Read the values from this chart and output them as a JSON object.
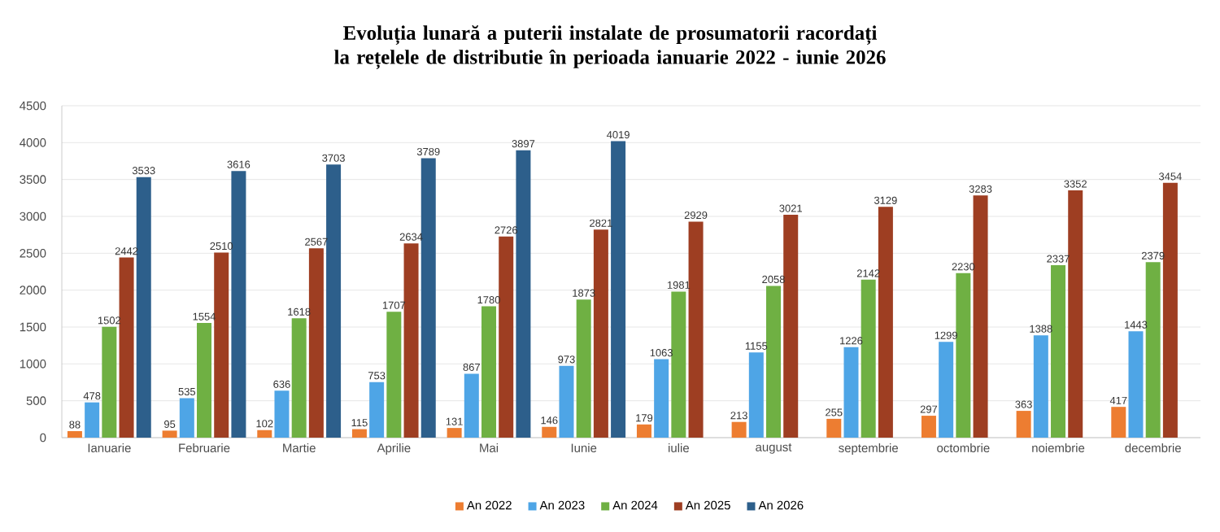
{
  "chart_data": {
    "type": "bar",
    "title": "Evoluția lunară a puterii instalate de prosumatorii racordați la rețelele de distributie în perioada ianuarie 2022 - iunie 2026",
    "categories": [
      "Ianuarie",
      "Februarie",
      "Martie",
      "Aprilie",
      "Mai",
      "Iunie",
      "iulie",
      "august",
      "septembrie",
      "octombrie",
      "noiembrie",
      "decembrie"
    ],
    "series": [
      {
        "name": "An 2022",
        "color": "#ed7d31",
        "values": [
          88,
          95,
          102,
          115,
          131,
          146,
          179,
          213,
          255,
          297,
          363,
          417
        ]
      },
      {
        "name": "An 2023",
        "color": "#4ea5e6",
        "values": [
          478,
          535,
          636,
          753,
          867,
          973,
          1063,
          1155,
          1226,
          1299,
          1388,
          1443
        ]
      },
      {
        "name": "An 2024",
        "color": "#6fb043",
        "values": [
          1502,
          1554,
          1618,
          1707,
          1780,
          1873,
          1981,
          2058,
          2142,
          2230,
          2337,
          2379
        ]
      },
      {
        "name": "An 2025",
        "color": "#9e3e22",
        "values": [
          2442,
          2510,
          2567,
          2634,
          2726,
          2821,
          2929,
          3021,
          3129,
          3283,
          3352,
          3454
        ]
      },
      {
        "name": "An 2026",
        "color": "#2d5f8b",
        "values": [
          3533,
          3616,
          3703,
          3789,
          3897,
          4019,
          null,
          null,
          null,
          null,
          null,
          null
        ]
      }
    ],
    "ylim": [
      0,
      4500
    ],
    "yticks": [
      0,
      500,
      1000,
      1500,
      2000,
      2500,
      3000,
      3500,
      4000,
      4500
    ],
    "grid": "y",
    "legend": "bottom",
    "data_labels": true
  }
}
